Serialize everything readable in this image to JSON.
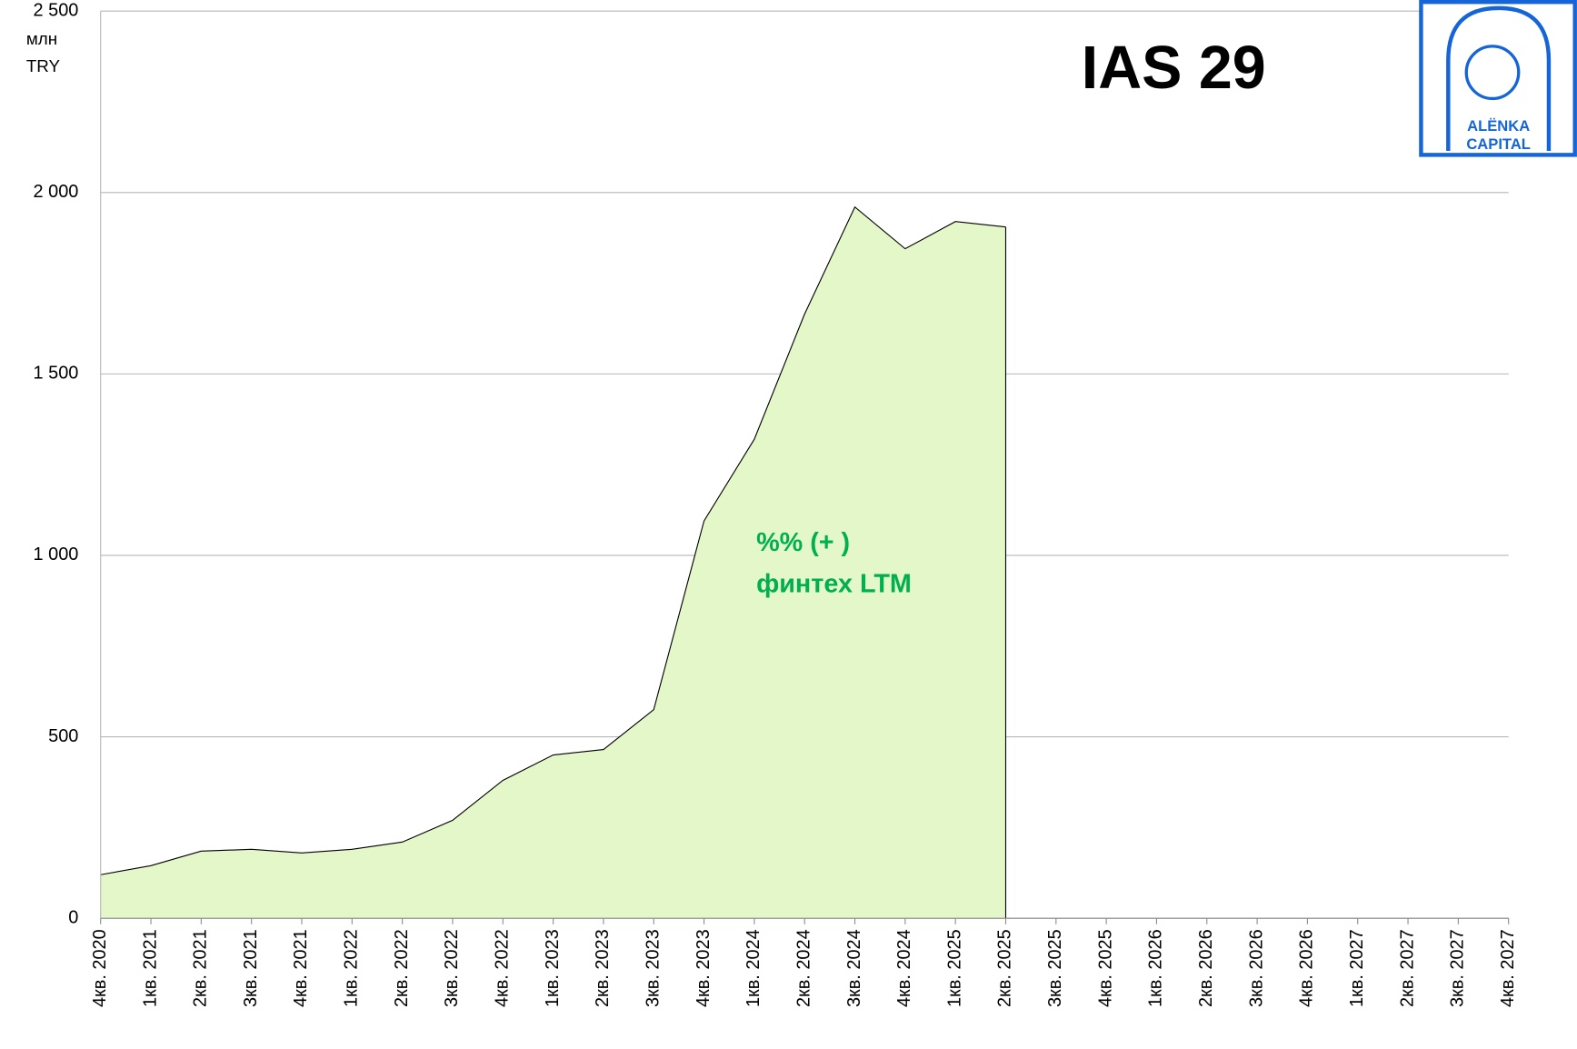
{
  "chart_data": {
    "type": "area",
    "title": "IAS 29",
    "y_unit": [
      "млн",
      "TRY"
    ],
    "annotation": [
      "%% (+ )",
      "финтех LTM"
    ],
    "logo": [
      "ALËNKA",
      "CAPITAL"
    ],
    "categories": [
      "4кв. 2020",
      "1кв. 2021",
      "2кв. 2021",
      "3кв. 2021",
      "4кв. 2021",
      "1кв. 2022",
      "2кв. 2022",
      "3кв. 2022",
      "4кв. 2022",
      "1кв. 2023",
      "2кв. 2023",
      "3кв. 2023",
      "4кв. 2023",
      "1кв. 2024",
      "2кв. 2024",
      "3кв. 2024",
      "4кв. 2024",
      "1кв. 2025",
      "2кв. 2025",
      "3кв. 2025",
      "4кв. 2025",
      "1кв. 2026",
      "2кв. 2026",
      "3кв. 2026",
      "4кв. 2026",
      "1кв. 2027",
      "2кв. 2027",
      "3кв. 2027",
      "4кв. 2027"
    ],
    "values": [
      120,
      145,
      185,
      190,
      180,
      190,
      210,
      270,
      380,
      450,
      465,
      575,
      1095,
      1320,
      1665,
      1960,
      1845,
      1920,
      1905,
      null,
      null,
      null,
      null,
      null,
      null,
      null,
      null,
      null,
      null
    ],
    "color": "#e4f7c8",
    "line_color": "#000000",
    "annotation_color": "#00b050",
    "ylim": [
      0,
      2500
    ],
    "yticks": [
      0,
      500,
      {
        "value": 1000,
        "label": "1 000"
      },
      {
        "value": 1500,
        "label": "1 500"
      },
      {
        "value": 2000,
        "label": "2 000"
      },
      {
        "value": 2500,
        "label": "2 500"
      }
    ],
    "grid": true
  }
}
